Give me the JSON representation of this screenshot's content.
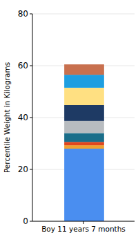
{
  "chart_data": {
    "type": "bar",
    "stacked": true,
    "ylabel": "Percentile Weight in Kilograms",
    "categories": [
      "Boy 11 years 7 months"
    ],
    "series": [
      {
        "color": "#4a8ef0",
        "values": [
          28
        ]
      },
      {
        "color": "#f0a030",
        "values": [
          1.3
        ]
      },
      {
        "color": "#e0461e",
        "values": [
          1.3
        ]
      },
      {
        "color": "#1a6e8a",
        "values": [
          3.4
        ]
      },
      {
        "color": "#b8bcc0",
        "values": [
          4.7
        ]
      },
      {
        "color": "#1e3a64",
        "values": [
          6.1
        ]
      },
      {
        "color": "#ffe082",
        "values": [
          6.7
        ]
      },
      {
        "color": "#1e9ee0",
        "values": [
          5
        ]
      },
      {
        "color": "#c8704e",
        "values": [
          4
        ]
      }
    ],
    "ylim": [
      0,
      80
    ],
    "yticks": [
      0,
      20,
      40,
      60,
      80
    ],
    "grid": true
  }
}
